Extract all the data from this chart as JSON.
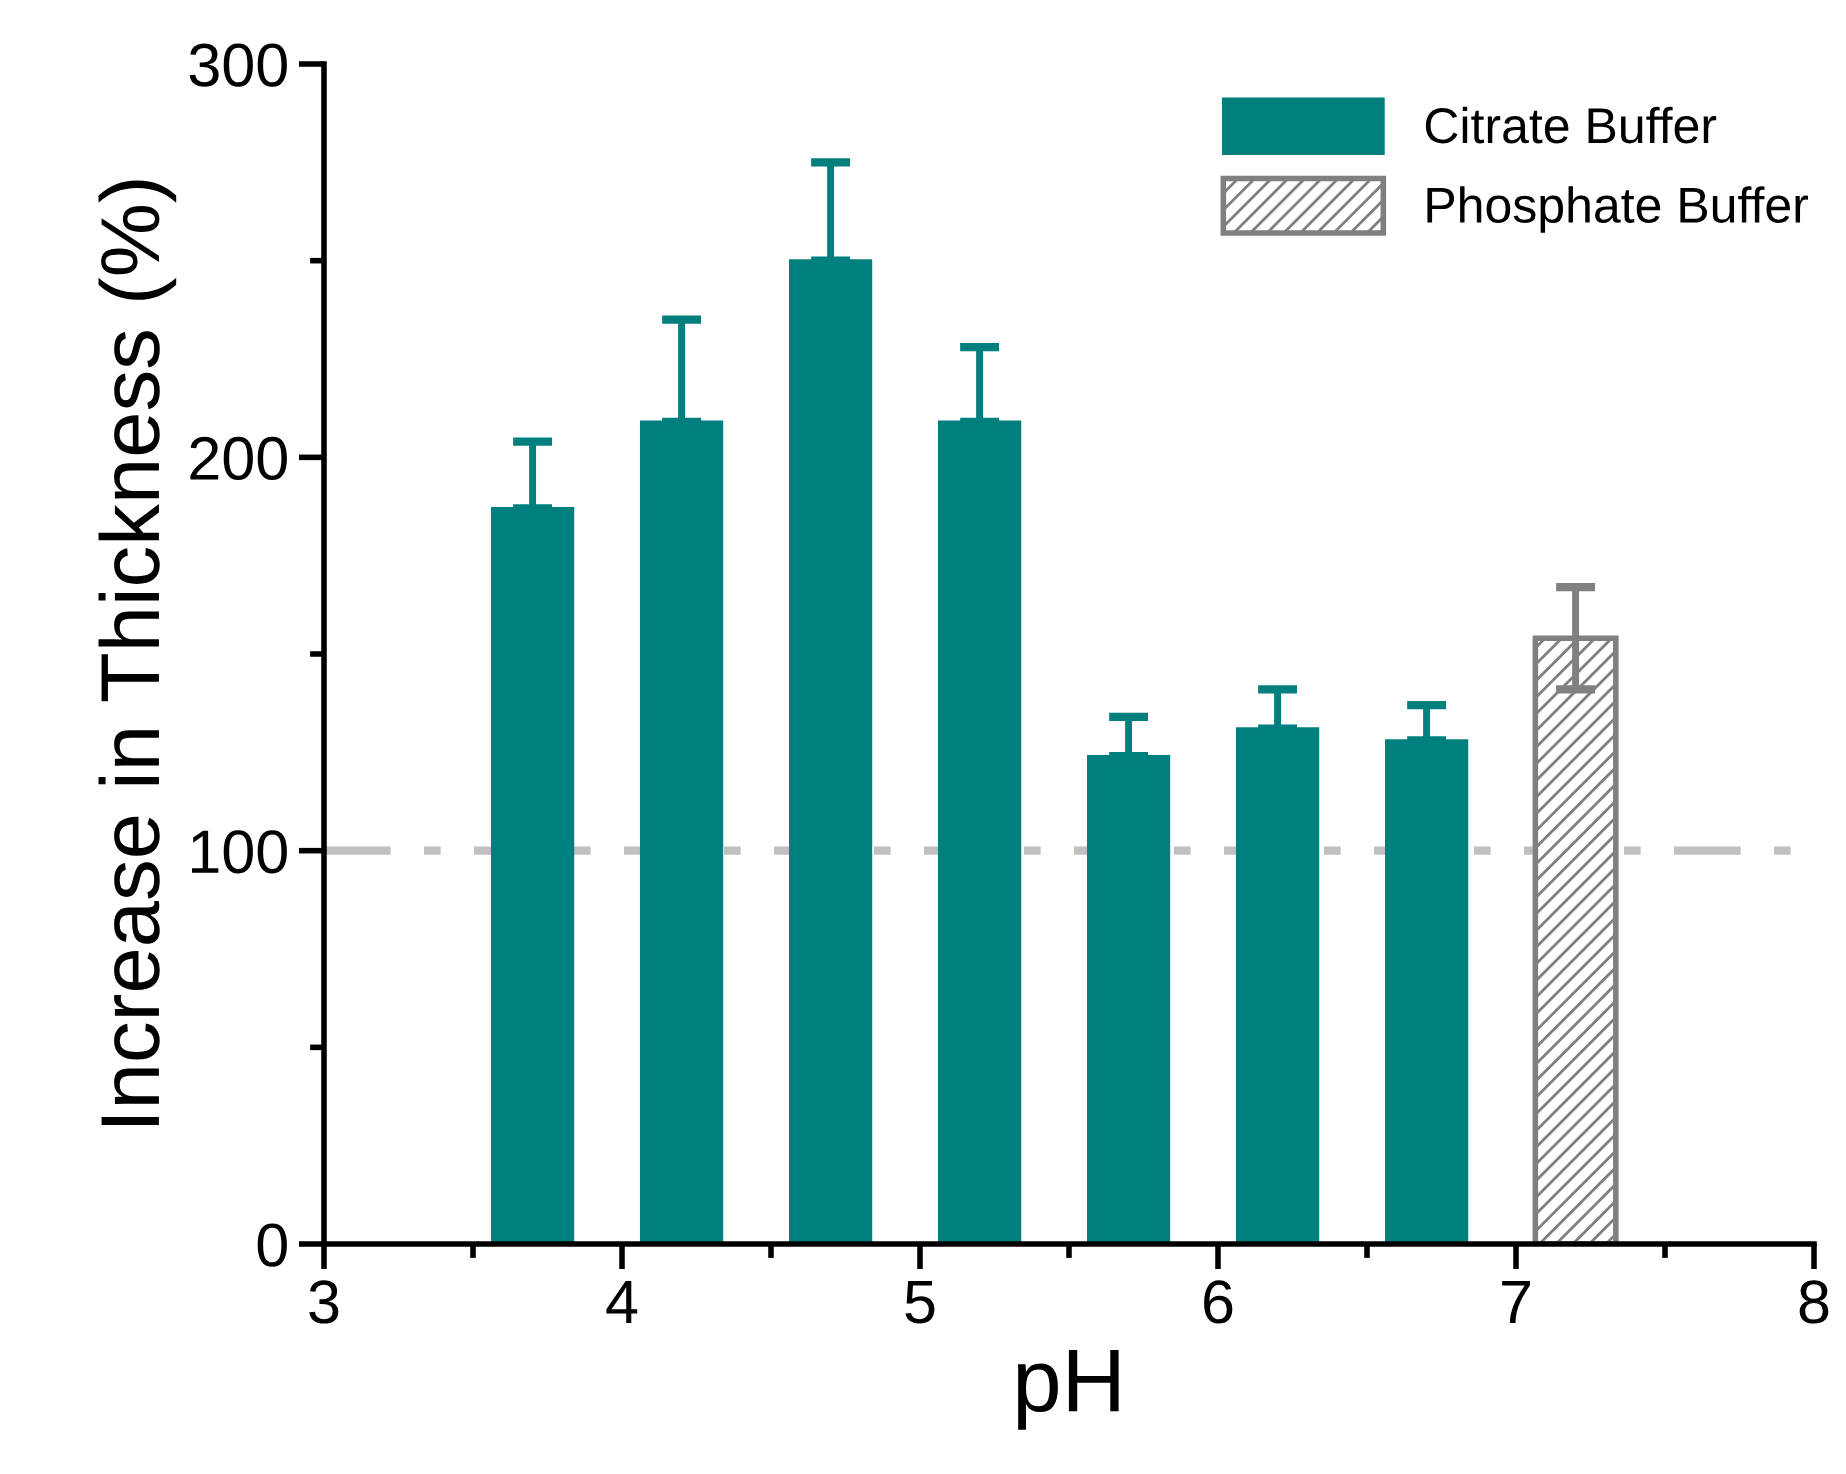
{
  "chart_data": {
    "type": "bar",
    "xlabel": "pH",
    "ylabel": "Increase in Thickness (%)",
    "series": [
      {
        "name": "Citrate Buffer",
        "color": "#007f7f",
        "x": [
          3.7,
          4.2,
          4.7,
          5.2,
          5.7,
          6.2,
          6.7
        ],
        "values": [
          187,
          209,
          250,
          209,
          124,
          131,
          128
        ],
        "errors": [
          [
            187,
            204
          ],
          [
            209,
            235
          ],
          [
            250,
            275
          ],
          [
            209,
            228
          ],
          [
            124,
            134
          ],
          [
            131,
            141
          ],
          [
            128,
            137
          ]
        ]
      },
      {
        "name": "Phosphate Buffer",
        "color": "#808080",
        "x": [
          7.2
        ],
        "values": [
          154
        ],
        "errors": [
          [
            141,
            167
          ]
        ]
      }
    ],
    "xlim": [
      3,
      8
    ],
    "xticks": [
      3,
      4,
      5,
      6,
      7,
      8
    ],
    "ylim": [
      0,
      300
    ],
    "yticks": [
      0,
      100,
      200,
      300
    ],
    "ref_lines": [
      {
        "axis": "y",
        "value": 100,
        "color": "#c0c0c0",
        "line_style": "dashdot"
      }
    ],
    "grid": false,
    "legend": "top right"
  }
}
